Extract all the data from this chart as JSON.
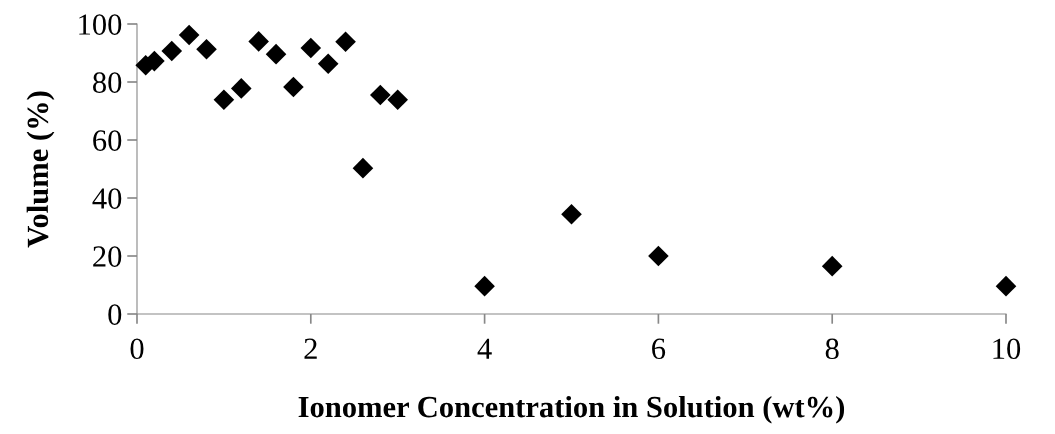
{
  "chart_data": {
    "type": "scatter",
    "xlabel": "Ionomer Concentration in Solution (wt%)",
    "ylabel": "Volume (%)",
    "x": [
      0.1,
      0.2,
      0.4,
      0.6,
      0.8,
      1.0,
      1.2,
      1.4,
      1.6,
      1.8,
      2.0,
      2.2,
      2.4,
      2.6,
      2.8,
      3.0,
      4,
      5,
      6,
      8,
      10
    ],
    "series": [
      {
        "color": "#000000",
        "values": [
          85.8,
          87.2,
          90.7,
          96.2,
          91.3,
          73.9,
          77.8,
          94.0,
          89.6,
          78.3,
          91.7,
          86.3,
          93.9,
          50.3,
          75.5,
          73.9,
          9.6,
          34.4,
          20.0,
          16.5,
          9.6
        ]
      }
    ],
    "marker": "diamond",
    "xlim": [
      0,
      10
    ],
    "xticks": [
      0,
      2,
      4,
      6,
      8,
      10
    ],
    "ylim": [
      0,
      100
    ],
    "yticks": [
      0,
      20,
      40,
      60,
      80,
      100
    ],
    "grid": false,
    "legend": false
  }
}
